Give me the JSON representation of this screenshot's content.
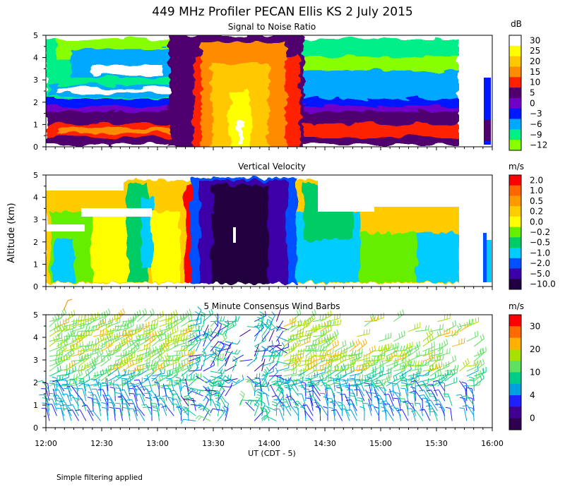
{
  "title": "449 MHz Profiler PECAN Ellis KS  2 July 2015",
  "ylabel": "Altitude (km)",
  "xlabel": "UT  (CDT - 5)",
  "footnote": "Simple filtering applied",
  "x_ticks": [
    "12:00",
    "12:30",
    "13:00",
    "13:30",
    "14:00",
    "14:30",
    "15:00",
    "15:30",
    "16:00"
  ],
  "y_ticks": [
    "0",
    "1",
    "2",
    "3",
    "4",
    "5"
  ],
  "chart_data": [
    {
      "type": "heatmap",
      "title": "Signal to Noise Ratio",
      "units": "dB",
      "xlim": [
        "12:00",
        "16:00"
      ],
      "ylim": [
        0,
        5
      ],
      "colorbar_labels": [
        "30",
        "25",
        "20",
        "15",
        "10",
        "5",
        "0",
        "−3",
        "−6",
        "−9",
        "−12"
      ],
      "colorbar_colors": [
        "#ffffff",
        "#ffff00",
        "#ffc800",
        "#ff8c00",
        "#ff2000",
        "#50006e",
        "#7000c8",
        "#0018ff",
        "#00a8ff",
        "#00ee88",
        "#88ff00"
      ],
      "features": {
        "high_snr_convective_core": {
          "x_start": "13:17",
          "x_end": "14:12",
          "peak_db": 30
        },
        "boundary_layer_max_altitude_km": 1.0,
        "data_gap": [
          "15:40",
          "15:52"
        ]
      }
    },
    {
      "type": "heatmap",
      "title": "Vertical Velocity",
      "units": "m/s",
      "xlim": [
        "12:00",
        "16:00"
      ],
      "ylim": [
        0,
        5
      ],
      "colorbar_labels": [
        "2.0",
        "1.0",
        "0.5",
        "0.2",
        "0.0",
        "−0.2",
        "−0.5",
        "−1.0",
        "−2.0",
        "−5.0",
        "−10.0"
      ],
      "colorbar_colors": [
        "#ff0000",
        "#ff6600",
        "#ff9900",
        "#ffcc00",
        "#ffff00",
        "#66ee00",
        "#00cc66",
        "#00ccff",
        "#0050ff",
        "#3c00a8",
        "#200040"
      ],
      "features": {
        "strong_downdraft": {
          "x_start": "13:25",
          "x_end": "14:00",
          "min_ms": -10.0
        },
        "updraft_edge": {
          "x": "13:20",
          "max_ms": 2.0
        }
      }
    },
    {
      "type": "scatter",
      "title": "5 Minute Consensus Wind Barbs",
      "units": "m/s",
      "xlim": [
        "12:00",
        "16:00"
      ],
      "ylim": [
        0,
        5
      ],
      "colorbar_labels": [
        "30",
        "20",
        "10",
        "4",
        "0"
      ],
      "colorbar_colors": [
        "#ff0000",
        "#ff6a00",
        "#ffb000",
        "#a8e000",
        "#60e060",
        "#00cc88",
        "#00a0e0",
        "#2020ff",
        "#400090",
        "#300050"
      ],
      "features": {
        "low_level_speed_ms": [
          4,
          10
        ],
        "upper_level_speed_ms": [
          10,
          20
        ],
        "max_speed_ms": 20
      }
    }
  ]
}
